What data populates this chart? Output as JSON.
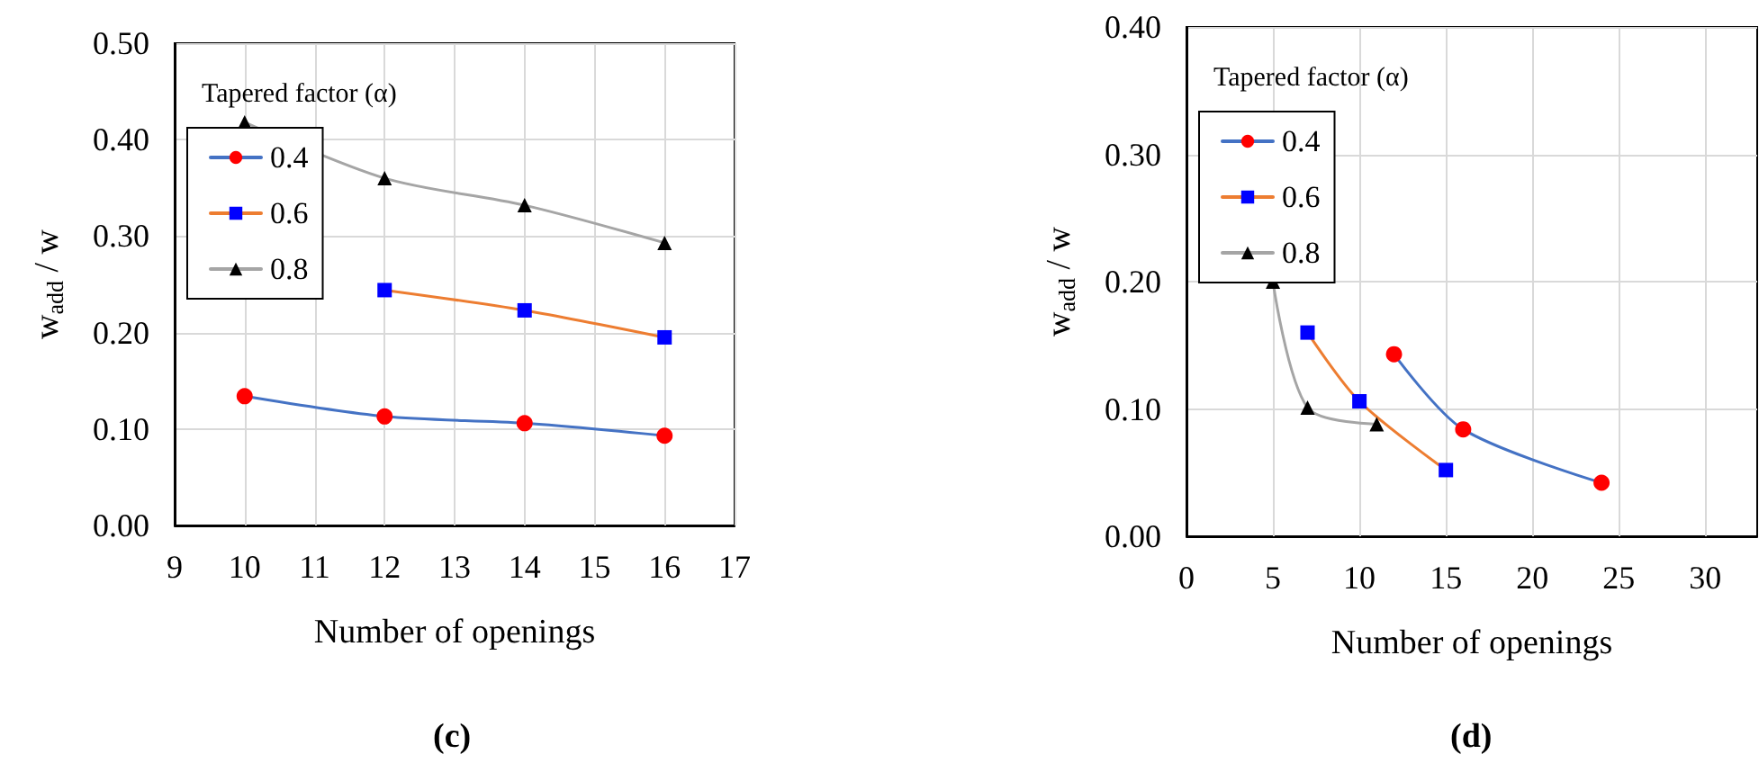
{
  "chart_data": [
    {
      "type": "line",
      "xlabel": "Number of openings",
      "ylabel": "w$_{add}$ / w",
      "legend_title": "Tapered factor (α)",
      "annotations": [
        "(c)"
      ],
      "x": [
        10,
        12,
        14,
        16
      ],
      "series": [
        {
          "name": "0.4",
          "color": "#4472c4",
          "colors": [
            "#ff0000",
            "#ff0000",
            "#ff0000",
            "#ff0000"
          ],
          "marker": "circle",
          "values": [
            0.134,
            0.113,
            0.106,
            0.093
          ]
        },
        {
          "name": "0.6",
          "color": "#ed7d31",
          "colors": [
            "#0000ff",
            "#0000ff",
            "#0000ff",
            "#0000ff"
          ],
          "marker": "square",
          "values": [
            null,
            0.244,
            0.223,
            0.195
          ]
        },
        {
          "name": "0.8",
          "color": "#a5a5a5",
          "colors": [
            "#000000",
            "#000000",
            "#000000",
            "#000000"
          ],
          "marker": "triangle",
          "values": [
            0.418,
            0.36,
            0.332,
            0.293
          ]
        }
      ],
      "xlim": [
        9,
        17
      ],
      "xticks": [
        9,
        10,
        11,
        12,
        13,
        14,
        15,
        16,
        17
      ],
      "ylim": [
        0,
        0.5
      ],
      "yticks": [
        {
          "value": 0,
          "label": "0.00"
        },
        {
          "value": 0.1,
          "label": "0.10"
        },
        {
          "value": 0.2,
          "label": "0.20"
        },
        {
          "value": 0.3,
          "label": "0.30"
        },
        {
          "value": 0.4,
          "label": "0.40"
        },
        {
          "value": 0.5,
          "label": "0.50"
        }
      ],
      "grid": true,
      "legend": "top left",
      "line_style": "solid"
    },
    {
      "type": "line",
      "xlabel": "Number of openings",
      "ylabel": "w$_{add}$ / w",
      "legend_title": "Tapered factor (α)",
      "annotations": [
        "(d)"
      ],
      "series": [
        {
          "name": "0.4",
          "color": "#4472c4",
          "colors": [
            "#ff0000",
            "#ff0000",
            "#ff0000"
          ],
          "marker": "circle",
          "x": [
            12,
            16,
            24
          ],
          "values": [
            0.143,
            0.084,
            0.042
          ]
        },
        {
          "name": "0.6",
          "color": "#ed7d31",
          "colors": [
            "#0000ff",
            "#0000ff",
            "#0000ff"
          ],
          "marker": "square",
          "x": [
            7,
            10,
            15
          ],
          "values": [
            0.16,
            0.106,
            0.052
          ]
        },
        {
          "name": "0.8",
          "color": "#a5a5a5",
          "colors": [
            "#000000",
            "#000000",
            "#000000"
          ],
          "marker": "triangle",
          "x": [
            5,
            7,
            11
          ],
          "values": [
            0.2,
            0.101,
            0.088
          ]
        }
      ],
      "xlim": [
        0,
        33
      ],
      "xticks": [
        0,
        5,
        10,
        15,
        20,
        25,
        30
      ],
      "ylim": [
        0,
        0.4
      ],
      "yticks": [
        {
          "value": 0,
          "label": "0.00"
        },
        {
          "value": 0.1,
          "label": "0.10"
        },
        {
          "value": 0.2,
          "label": "0.20"
        },
        {
          "value": 0.3,
          "label": "0.30"
        },
        {
          "value": 0.4,
          "label": "0.40"
        }
      ],
      "grid": true,
      "legend": "top left",
      "line_style": "solid"
    }
  ]
}
